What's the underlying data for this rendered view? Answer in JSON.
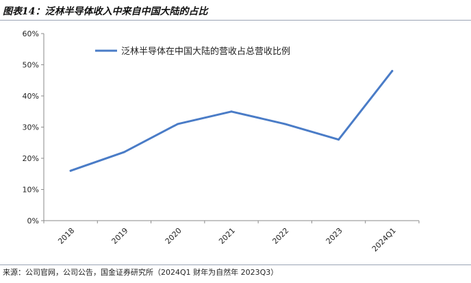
{
  "figure_title": "图表14：泛林半导体收入中来自中国大陆的占比",
  "source_note": "来源：公司官网，公司公告，国金证券研究所（2024Q1 财年为自然年 2023Q3）",
  "chart_data": {
    "type": "line",
    "title": "",
    "xlabel": "",
    "ylabel": "",
    "categories": [
      "2018",
      "2019",
      "2020",
      "2021",
      "2022",
      "2023",
      "2024Q1"
    ],
    "series": [
      {
        "name": "泛林半导体在中国大陆的营收占总营收比例",
        "color": "#4a7cc7",
        "values": [
          16,
          22,
          31,
          35,
          31,
          26,
          48
        ]
      }
    ],
    "ylim": [
      0,
      60
    ],
    "yticks": [
      "0%",
      "10%",
      "20%",
      "30%",
      "40%",
      "50%",
      "60%"
    ],
    "ytick_values": [
      0,
      10,
      20,
      30,
      40,
      50,
      60
    ],
    "grid": false,
    "legend_position": "top-center"
  }
}
